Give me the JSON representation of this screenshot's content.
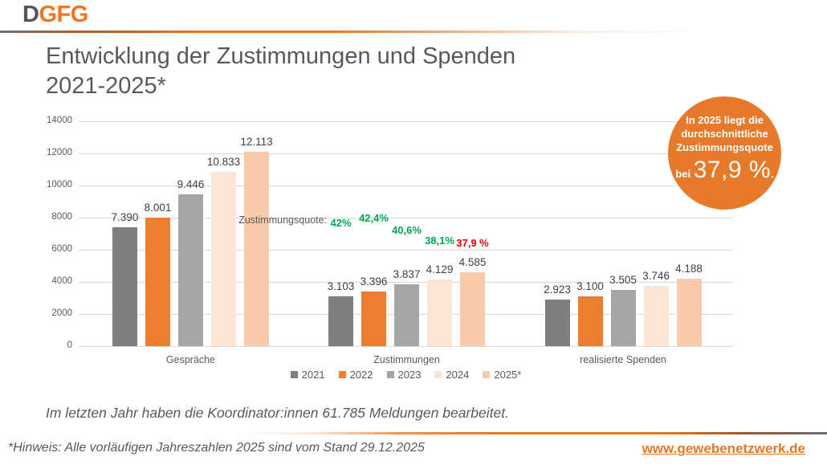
{
  "logo": {
    "part1": "D",
    "part2": "GFG"
  },
  "title": {
    "line1": "Entwicklung der Zustimmungen und Spenden",
    "line2": "2021-2025*"
  },
  "chart_data": {
    "type": "bar",
    "title": "Entwicklung der Zustimmungen und Spenden 2021-2025*",
    "categories": [
      "Gespräche",
      "Zustimmungen",
      "realisierte Spenden"
    ],
    "series": [
      {
        "name": "2021",
        "color": "#7F7F7F",
        "values": [
          7390,
          3103,
          2923
        ],
        "labels": [
          "7.390",
          "3.103",
          "2.923"
        ]
      },
      {
        "name": "2022",
        "color": "#ED7D31",
        "values": [
          8001,
          3396,
          3100
        ],
        "labels": [
          "8.001",
          "3.396",
          "3.100"
        ]
      },
      {
        "name": "2023",
        "color": "#A5A5A5",
        "values": [
          9446,
          3837,
          3505
        ],
        "labels": [
          "9.446",
          "3.837",
          "3.505"
        ]
      },
      {
        "name": "2024",
        "color": "#FBE5D6",
        "values": [
          10833,
          4129,
          3746
        ],
        "labels": [
          "10.833",
          "4.129",
          "3.746"
        ]
      },
      {
        "name": "2025*",
        "color": "#F8CBAD",
        "values": [
          12113,
          4585,
          4188
        ],
        "labels": [
          "12.113",
          "4.585",
          "4.188"
        ]
      }
    ],
    "ylim": [
      0,
      14000
    ],
    "ytick_step": 2000,
    "grid": true,
    "legend_position": "bottom",
    "quote_annotation": {
      "label": "Zustimmungsquote:",
      "items": [
        {
          "text": "42%",
          "color": "#00A651",
          "y": 278
        },
        {
          "text": "42,4%",
          "color": "#00A651",
          "y": 272
        },
        {
          "text": "40,6%",
          "color": "#00A651",
          "y": 287
        },
        {
          "text": "38,1%",
          "color": "#00A651",
          "y": 300
        },
        {
          "text": "37,9 %",
          "color": "#E60000",
          "y": 303
        }
      ]
    }
  },
  "callout": {
    "bg_color": "#E7792B",
    "line1": "In 2025 liegt die",
    "line2": "durchschnittliche",
    "line3": "Zustimmungsquote",
    "prefix": "bei ",
    "big_value": "37,9 %",
    "suffix": "."
  },
  "note": "Im letzten Jahr haben die Koordinator:innen 61.785 Meldungen bearbeitet.",
  "footnote": "*Hinweis: Alle vorläufigen Jahreszahlen 2025 sind vom Stand 29.12.2025",
  "weblink": "www.gewebenetzwerk.de",
  "brand": {
    "orange": "#E87722",
    "gray": "#6E6F72"
  }
}
